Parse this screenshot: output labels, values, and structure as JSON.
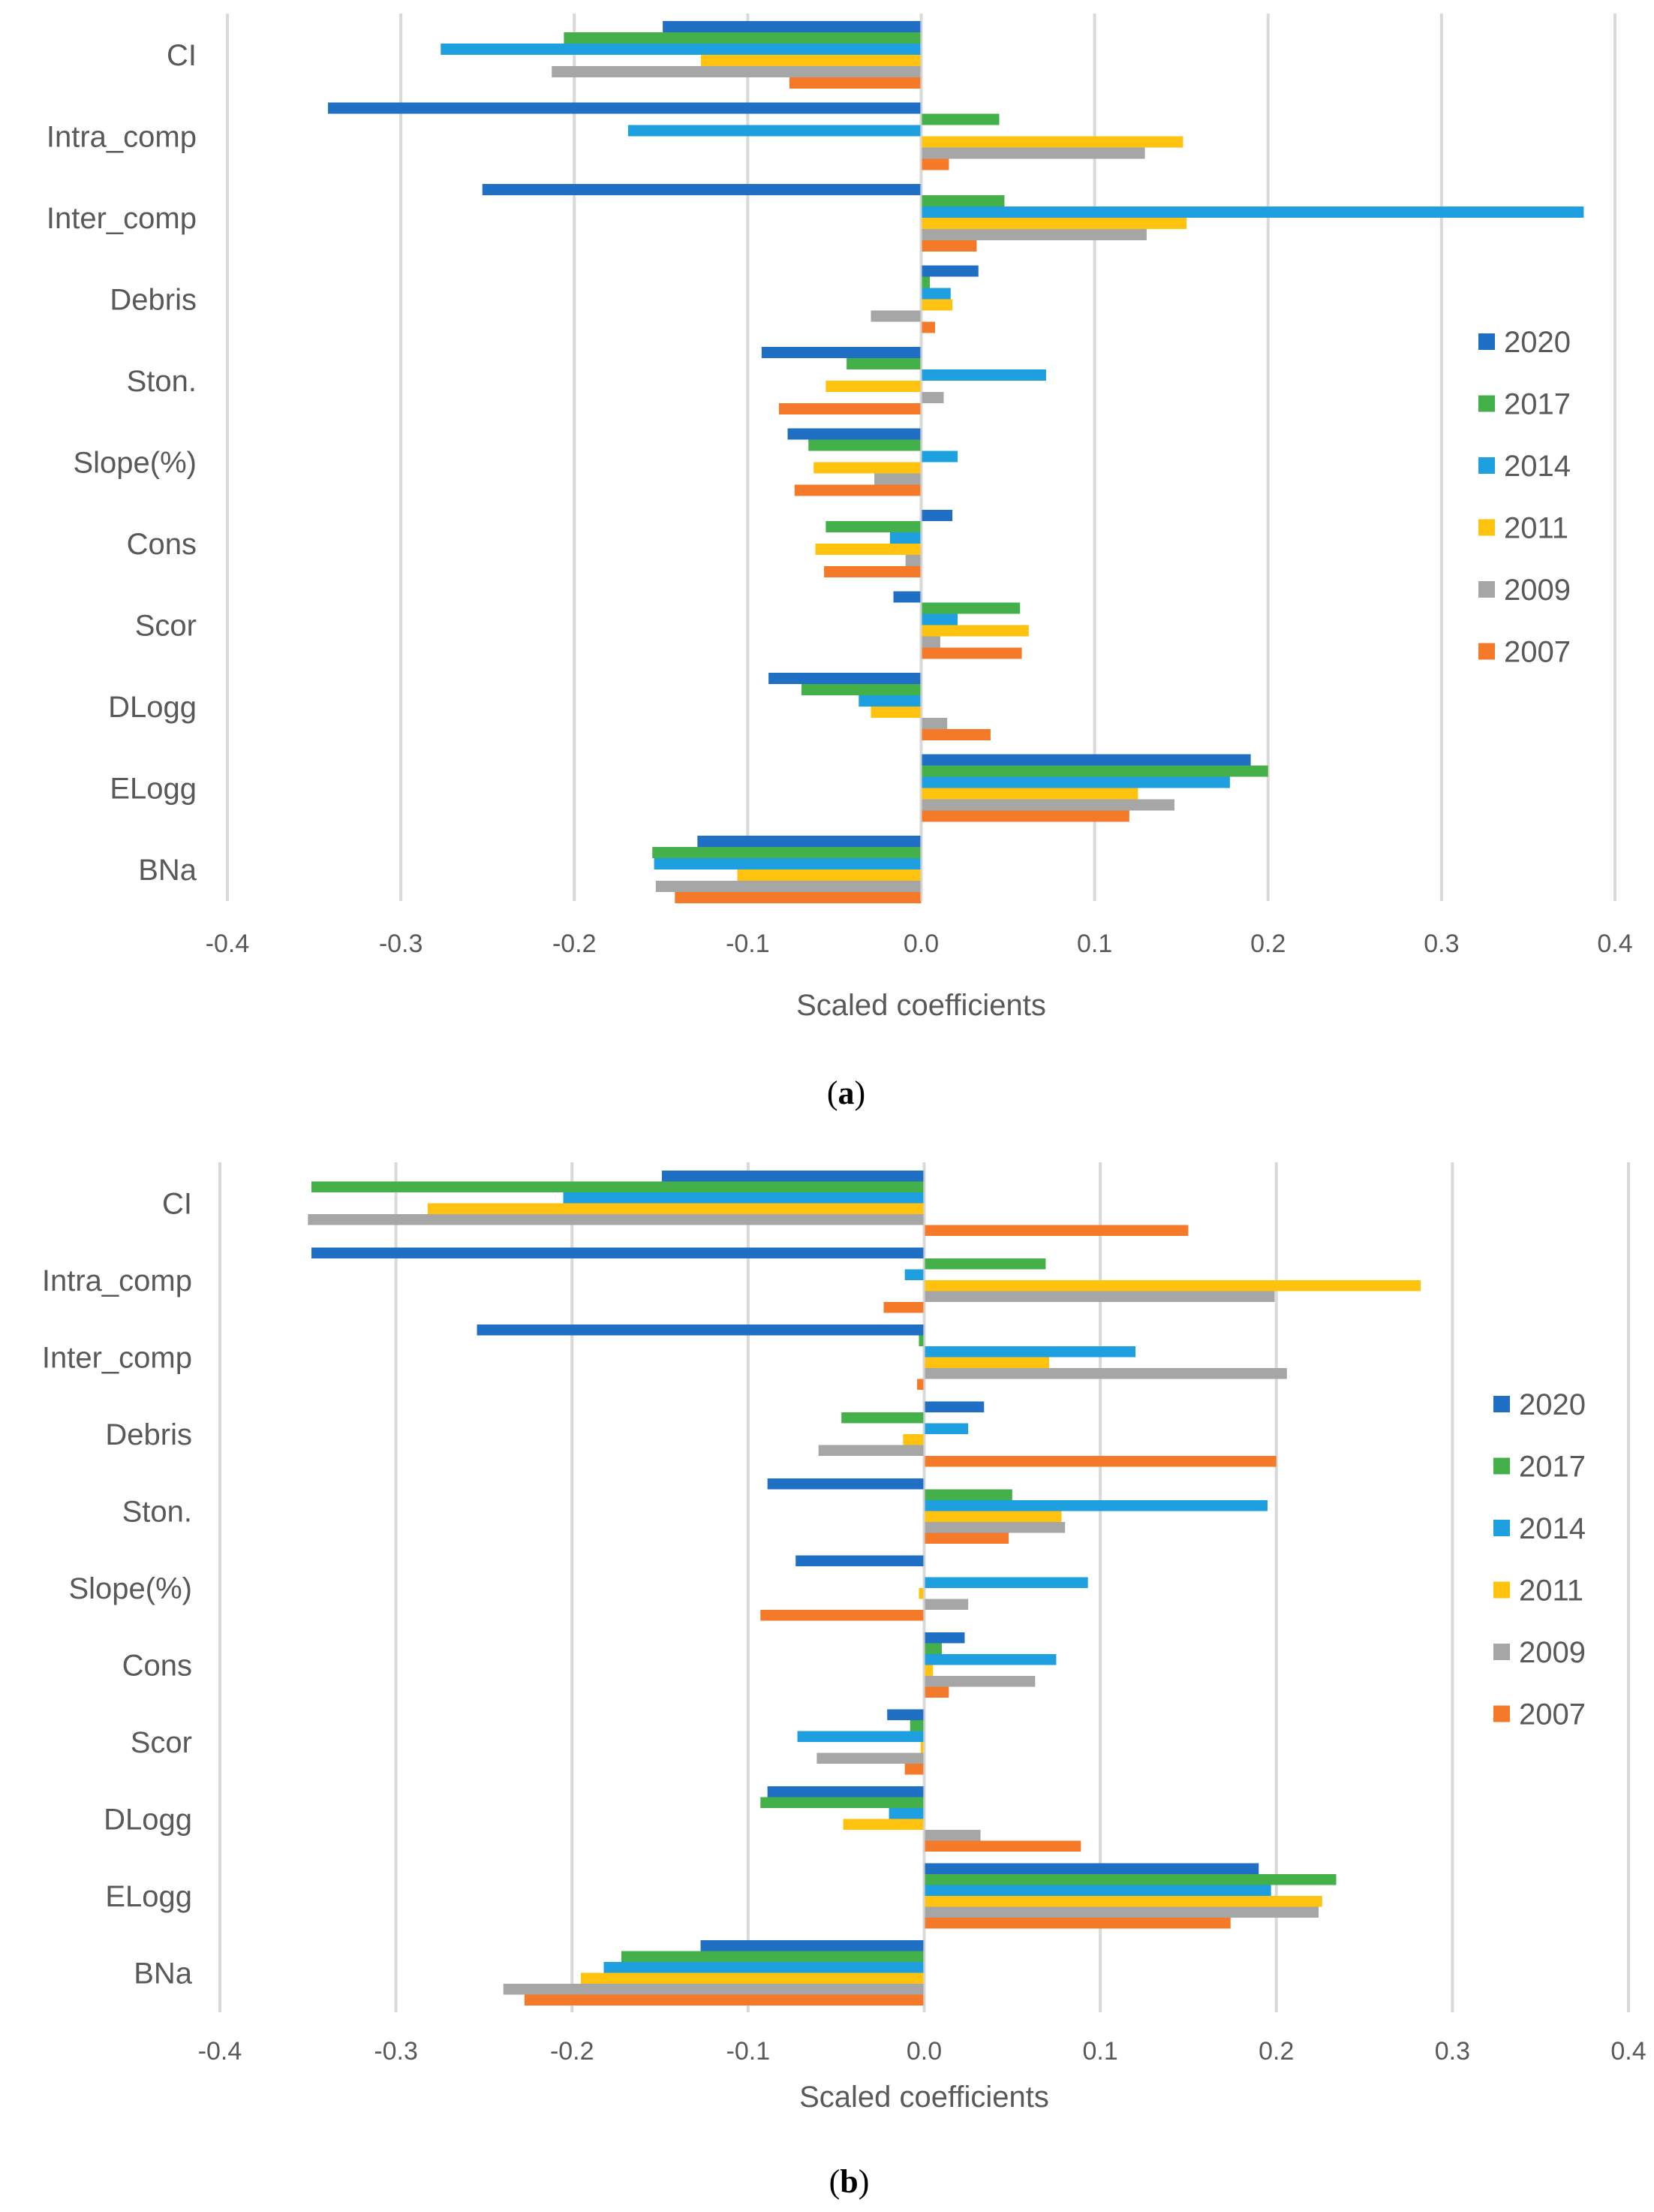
{
  "colors": {
    "2020": "#1f6fc5",
    "2017": "#43b04a",
    "2014": "#1ea0e0",
    "2011": "#ffc20e",
    "2009": "#a6a6a6",
    "2007": "#f47a2a",
    "gridline": "#d9d9d9",
    "axis_text": "#595959"
  },
  "chart_data": [
    {
      "type": "bar",
      "orientation": "horizontal",
      "panel_label": "(a)",
      "xlabel": "Scaled coefficients",
      "xlim": [
        -0.4,
        0.4
      ],
      "x_ticks": [
        -0.4,
        -0.3,
        -0.2,
        -0.1,
        0.0,
        0.1,
        0.2,
        0.3,
        0.4
      ],
      "x_tick_labels": [
        "-0.4",
        "-0.3",
        "-0.2",
        "-0.1",
        "0.0",
        "0.1",
        "0.2",
        "0.3",
        "0.4"
      ],
      "grid": "vertical",
      "legend_position": "right",
      "categories": [
        "CI",
        "Intra_comp",
        "Inter_comp",
        "Debris",
        "Ston.",
        "Slope(%)",
        "Cons",
        "Scor",
        "DLogg",
        "ELogg",
        "BNa"
      ],
      "series": [
        {
          "name": "2020",
          "values": [
            -0.149,
            -0.342,
            -0.253,
            0.033,
            -0.092,
            -0.077,
            0.018,
            -0.016,
            -0.088,
            0.19,
            -0.129
          ]
        },
        {
          "name": "2017",
          "values": [
            -0.206,
            0.045,
            0.048,
            0.005,
            -0.043,
            -0.065,
            -0.055,
            0.057,
            -0.069,
            0.2,
            -0.155
          ]
        },
        {
          "name": "2014",
          "values": [
            -0.277,
            -0.169,
            0.382,
            0.017,
            0.072,
            0.021,
            -0.018,
            0.021,
            -0.036,
            0.178,
            -0.154
          ]
        },
        {
          "name": "2011",
          "values": [
            -0.127,
            0.151,
            0.153,
            0.018,
            -0.055,
            -0.062,
            -0.061,
            0.062,
            -0.029,
            0.125,
            -0.106
          ]
        },
        {
          "name": "2009",
          "values": [
            -0.213,
            0.129,
            0.13,
            -0.029,
            0.013,
            -0.027,
            -0.009,
            0.011,
            0.015,
            0.146,
            -0.153
          ]
        },
        {
          "name": "2007",
          "values": [
            -0.076,
            0.016,
            0.032,
            0.008,
            -0.082,
            -0.073,
            -0.056,
            0.058,
            0.04,
            0.12,
            -0.142
          ]
        }
      ]
    },
    {
      "type": "bar",
      "orientation": "horizontal",
      "panel_label": "(b)",
      "xlabel": "Scaled coefficients",
      "xlim": [
        -0.4,
        0.4
      ],
      "x_ticks": [
        -0.4,
        -0.3,
        -0.2,
        -0.1,
        0.0,
        0.1,
        0.2,
        0.3,
        0.4
      ],
      "x_tick_labels": [
        "-0.4",
        "-0.3",
        "-0.2",
        "-0.1",
        "0.0",
        "0.1",
        "0.2",
        "0.3",
        "0.4"
      ],
      "grid": "vertical",
      "legend_position": "right",
      "categories": [
        "CI",
        "Intra_comp",
        "Inter_comp",
        "Debris",
        "Ston.",
        "Slope(%)",
        "Cons",
        "Scor",
        "DLogg",
        "ELogg",
        "BNa"
      ],
      "series": [
        {
          "name": "2020",
          "values": [
            -0.149,
            -0.348,
            -0.254,
            0.034,
            -0.089,
            -0.073,
            0.023,
            -0.021,
            -0.089,
            0.19,
            -0.127
          ]
        },
        {
          "name": "2017",
          "values": [
            -0.348,
            0.069,
            -0.003,
            -0.047,
            0.05,
            0.0,
            0.01,
            -0.008,
            -0.093,
            0.234,
            -0.172
          ]
        },
        {
          "name": "2014",
          "values": [
            -0.205,
            -0.011,
            0.12,
            0.025,
            0.195,
            0.093,
            0.075,
            -0.072,
            -0.02,
            0.197,
            -0.182
          ]
        },
        {
          "name": "2011",
          "values": [
            -0.282,
            0.282,
            0.071,
            -0.012,
            0.078,
            -0.003,
            0.005,
            -0.002,
            -0.046,
            0.226,
            -0.195
          ]
        },
        {
          "name": "2009",
          "values": [
            -0.35,
            0.199,
            0.206,
            -0.06,
            0.08,
            0.025,
            0.063,
            -0.061,
            0.032,
            0.224,
            -0.239
          ]
        },
        {
          "name": "2007",
          "values": [
            0.15,
            -0.023,
            -0.004,
            0.2,
            0.048,
            -0.093,
            0.014,
            -0.011,
            0.089,
            0.174,
            -0.227
          ]
        }
      ]
    }
  ]
}
